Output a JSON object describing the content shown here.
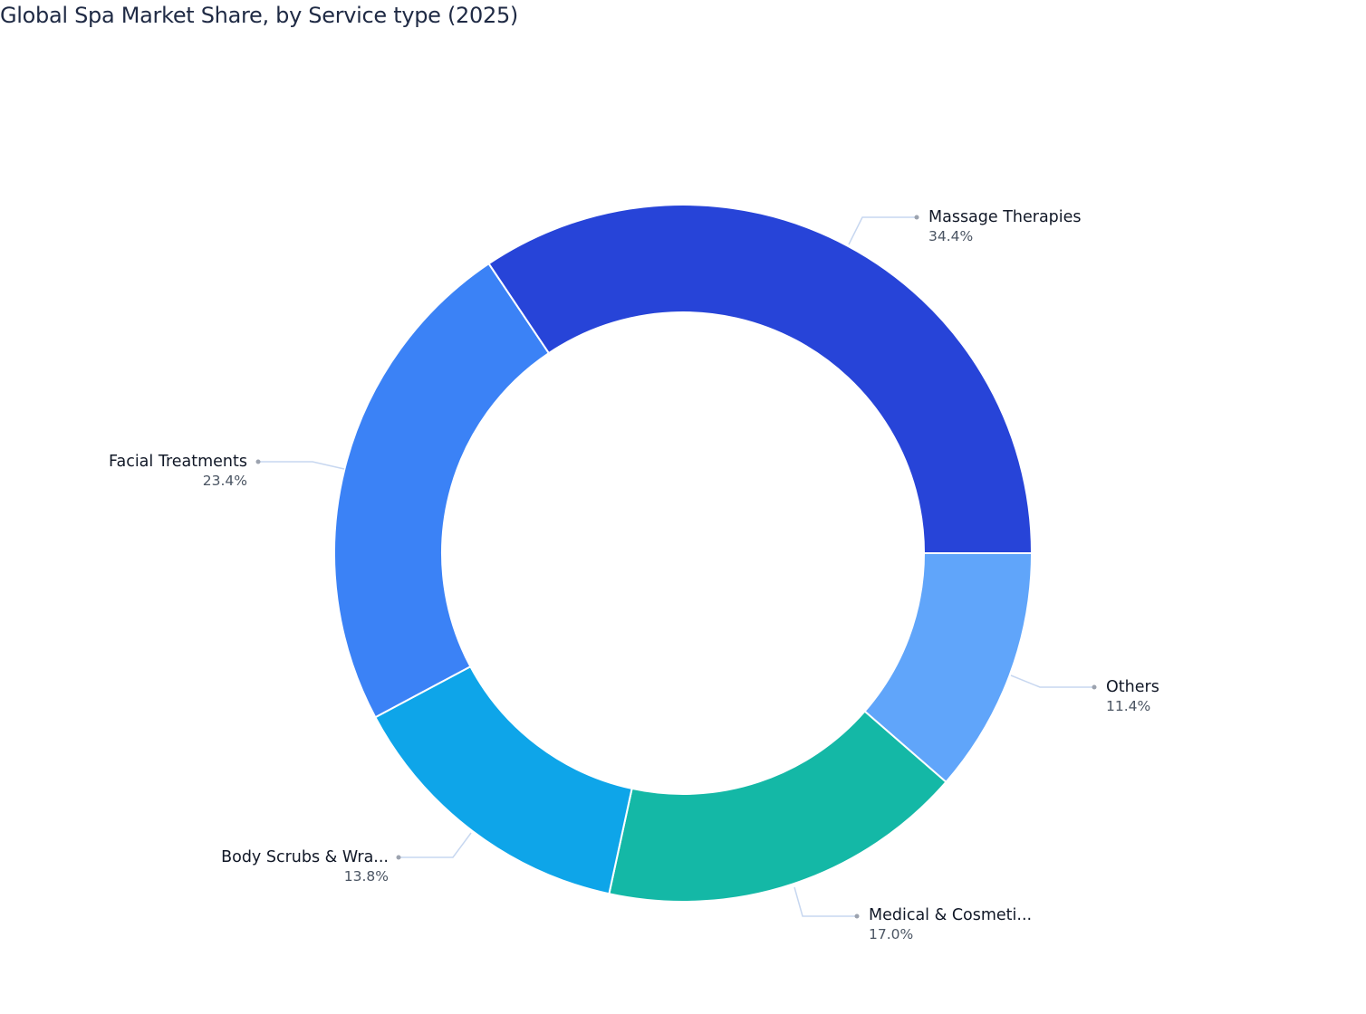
{
  "title": "Global Spa Market Share, by Service type (2025)",
  "chart_data": {
    "type": "pie",
    "subtype": "donut",
    "title": "Global Spa Market Share, by Service type (2025)",
    "start_angle": "3 o'clock, clockwise",
    "categories": [
      "Others",
      "Medical & Cosmeti...",
      "Body Scrubs & Wra...",
      "Facial Treatments",
      "Massage Therapies"
    ],
    "values": [
      11.4,
      17.0,
      13.8,
      23.4,
      34.4
    ],
    "colors": [
      "#60a5fa",
      "#14b8a6",
      "#0ea5e9",
      "#3b82f6",
      "#2744d8"
    ],
    "unit": "%"
  },
  "labels": {
    "others": {
      "name": "Others",
      "pct": "11.4%"
    },
    "medical": {
      "name": "Medical & Cosmeti...",
      "pct": "17.0%"
    },
    "body": {
      "name": "Body Scrubs & Wra...",
      "pct": "13.8%"
    },
    "facial": {
      "name": "Facial Treatments",
      "pct": "23.4%"
    },
    "massage": {
      "name": "Massage Therapies",
      "pct": "34.4%"
    }
  }
}
